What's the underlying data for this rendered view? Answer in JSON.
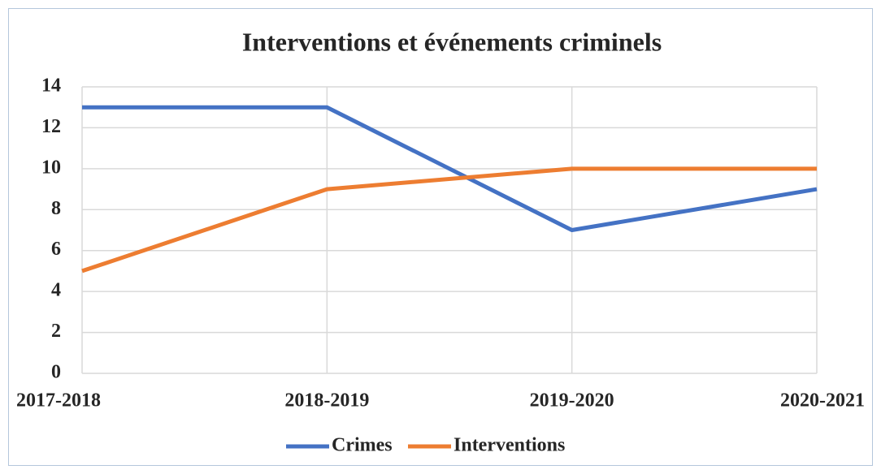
{
  "chart_data": {
    "type": "line",
    "title": "Interventions et événements criminels",
    "categories": [
      "2017-2018",
      "2018-2019",
      "2019-2020",
      "2020-2021"
    ],
    "series": [
      {
        "name": "Crimes",
        "color": "#4472c4",
        "values": [
          13,
          13,
          7,
          9
        ]
      },
      {
        "name": "Interventions",
        "color": "#ed7d31",
        "values": [
          5,
          9,
          10,
          10
        ]
      }
    ],
    "ylim": [
      0,
      14
    ],
    "yticks": [
      0,
      2,
      4,
      6,
      8,
      10,
      12,
      14
    ],
    "grid": true,
    "legend": "bottom"
  }
}
